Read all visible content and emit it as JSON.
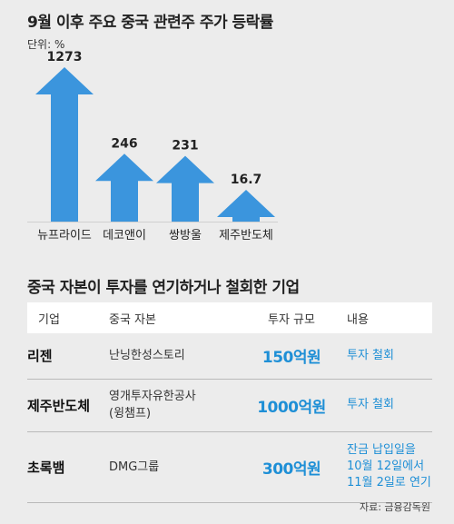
{
  "title": "9월 이후 주요 중국 관련주 주가 등락률",
  "unit": "단위: %",
  "colors": {
    "arrow": "#3b95dd",
    "accent_text": "#1e8fd6",
    "background": "#ececec"
  },
  "chart_data": {
    "type": "bar",
    "title": "9월 이후 주요 중국 관련주 주가 등락률",
    "unit": "단위: %",
    "categories": [
      "뉴프라이드",
      "데코앤이",
      "쌍방울",
      "제주반도체"
    ],
    "values": [
      1273,
      246,
      231,
      16.7
    ],
    "value_labels": [
      "1273",
      "246",
      "231",
      "16.7"
    ],
    "marker": "arrow-up",
    "color": "#3b95dd"
  },
  "table": {
    "title": "중국 자본이 투자를 연기하거나 철회한 기업",
    "headers": [
      "기업",
      "중국 자본",
      "투자 규모",
      "내용"
    ],
    "rows": [
      {
        "company": "리젠",
        "capital": [
          "난닝한성스토리"
        ],
        "amount": "150억원",
        "detail": [
          "투자 철회"
        ]
      },
      {
        "company": "제주반도체",
        "capital": [
          "영개투자유한공사",
          "(윙챔프)"
        ],
        "amount": "1000억원",
        "detail": [
          "투자 철회"
        ]
      },
      {
        "company": "초록뱀",
        "capital": [
          "DMG그룹"
        ],
        "amount": "300억원",
        "detail": [
          "잔금 납입일을",
          "10월 12일에서",
          "11월 2일로 연기"
        ]
      }
    ]
  },
  "source": "자료: 금융감독원"
}
